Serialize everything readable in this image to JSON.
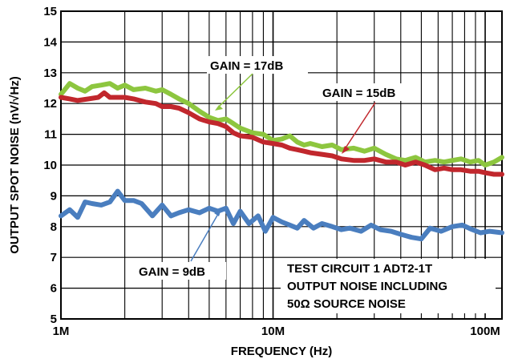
{
  "chart_data": {
    "type": "line",
    "xlabel": "FREQUENCY (Hz)",
    "ylabel": "OUTPUT SPOT NOISE (nV/√Hz)",
    "x_scale": "log",
    "xlim": [
      1000000,
      120000000
    ],
    "ylim": [
      5,
      15
    ],
    "grid": true,
    "x_ticks": [
      {
        "value": 1000000,
        "label": "1M"
      },
      {
        "value": 10000000,
        "label": "10M"
      },
      {
        "value": 100000000,
        "label": "100M"
      }
    ],
    "y_ticks": [
      {
        "value": 5,
        "label": "5"
      },
      {
        "value": 6,
        "label": "6"
      },
      {
        "value": 7,
        "label": "7"
      },
      {
        "value": 8,
        "label": "8"
      },
      {
        "value": 9,
        "label": "9"
      },
      {
        "value": 10,
        "label": "10"
      },
      {
        "value": 11,
        "label": "11"
      },
      {
        "value": 12,
        "label": "12"
      },
      {
        "value": 13,
        "label": "13"
      },
      {
        "value": 14,
        "label": "14"
      },
      {
        "value": 15,
        "label": "15"
      }
    ],
    "series": [
      {
        "label": "GAIN = 17dB",
        "color": "#8dc63f",
        "x": [
          1000000,
          1100000,
          1200000,
          1300000,
          1400000,
          1550000,
          1700000,
          1850000,
          2000000,
          2200000,
          2500000,
          2800000,
          3000000,
          3300000,
          3600000,
          4000000,
          4500000,
          5000000,
          5500000,
          6000000,
          6500000,
          7000000,
          8000000,
          9000000,
          10000000,
          11000000,
          12000000,
          13000000,
          14000000,
          15000000,
          17000000,
          19000000,
          21000000,
          24000000,
          27000000,
          30000000,
          34000000,
          38000000,
          42000000,
          47000000,
          52000000,
          58000000,
          64000000,
          70000000,
          77000000,
          85000000,
          93000000,
          100000000,
          110000000,
          120000000
        ],
        "y": [
          12.3,
          12.65,
          12.5,
          12.4,
          12.55,
          12.6,
          12.65,
          12.5,
          12.6,
          12.45,
          12.5,
          12.4,
          12.45,
          12.3,
          12.15,
          12.0,
          11.75,
          11.55,
          11.45,
          11.5,
          11.35,
          11.2,
          11.05,
          11.0,
          10.8,
          10.85,
          10.95,
          10.75,
          10.65,
          10.7,
          10.6,
          10.65,
          10.5,
          10.55,
          10.45,
          10.55,
          10.35,
          10.2,
          10.15,
          10.25,
          10.1,
          10.15,
          10.1,
          10.15,
          10.2,
          10.1,
          10.15,
          10.0,
          10.1,
          10.25
        ]
      },
      {
        "label": "GAIN = 15dB",
        "color": "#c1272d",
        "x": [
          1000000,
          1100000,
          1200000,
          1350000,
          1500000,
          1600000,
          1700000,
          1850000,
          2000000,
          2200000,
          2500000,
          2800000,
          3000000,
          3300000,
          3600000,
          4000000,
          4500000,
          5000000,
          5500000,
          6000000,
          6500000,
          7000000,
          8000000,
          9000000,
          10000000,
          11000000,
          12000000,
          13000000,
          14000000,
          15000000,
          17000000,
          19000000,
          21000000,
          24000000,
          27000000,
          30000000,
          34000000,
          38000000,
          42000000,
          47000000,
          52000000,
          58000000,
          64000000,
          70000000,
          77000000,
          85000000,
          93000000,
          100000000,
          110000000,
          120000000
        ],
        "y": [
          12.2,
          12.15,
          12.1,
          12.15,
          12.2,
          12.35,
          12.2,
          12.2,
          12.2,
          12.15,
          12.05,
          12.0,
          11.9,
          11.9,
          11.85,
          11.7,
          11.5,
          11.4,
          11.35,
          11.25,
          11.05,
          10.95,
          10.9,
          10.75,
          10.7,
          10.65,
          10.55,
          10.5,
          10.45,
          10.4,
          10.35,
          10.3,
          10.2,
          10.15,
          10.15,
          10.2,
          10.1,
          10.1,
          10.0,
          10.1,
          10.0,
          9.85,
          9.9,
          9.85,
          9.85,
          9.8,
          9.8,
          9.75,
          9.7,
          9.7
        ]
      },
      {
        "label": "GAIN = 9dB",
        "color": "#4a7ebf",
        "x": [
          1000000,
          1100000,
          1200000,
          1300000,
          1400000,
          1550000,
          1700000,
          1850000,
          2000000,
          2200000,
          2400000,
          2700000,
          3000000,
          3300000,
          3600000,
          4000000,
          4500000,
          5000000,
          5500000,
          6000000,
          6500000,
          7000000,
          7700000,
          8500000,
          9200000,
          10000000,
          11000000,
          12000000,
          13000000,
          14000000,
          15500000,
          17000000,
          19000000,
          21000000,
          23000000,
          26000000,
          29000000,
          32000000,
          36000000,
          40000000,
          45000000,
          50000000,
          55000000,
          62000000,
          70000000,
          78000000,
          87000000,
          95000000,
          105000000,
          120000000
        ],
        "y": [
          8.35,
          8.55,
          8.3,
          8.8,
          8.75,
          8.7,
          8.8,
          9.15,
          8.85,
          8.85,
          8.75,
          8.35,
          8.7,
          8.35,
          8.45,
          8.55,
          8.45,
          8.6,
          8.5,
          8.6,
          8.1,
          8.5,
          8.1,
          8.35,
          7.85,
          8.3,
          8.15,
          8.05,
          7.95,
          8.2,
          7.95,
          8.1,
          8.0,
          7.9,
          7.95,
          7.85,
          8.05,
          7.9,
          7.85,
          7.75,
          7.65,
          7.6,
          7.95,
          7.85,
          8.0,
          8.05,
          7.9,
          7.8,
          7.85,
          7.8
        ]
      }
    ],
    "annotations": {
      "gain17": "GAIN = 17dB",
      "gain15": "GAIN = 15dB",
      "gain9": "GAIN = 9dB",
      "test_circuit_line1": "TEST CIRCUIT 1 ADT2-1T",
      "test_circuit_line2": "OUTPUT NOISE INCLUDING",
      "test_circuit_line3": "50Ω SOURCE NOISE"
    }
  }
}
